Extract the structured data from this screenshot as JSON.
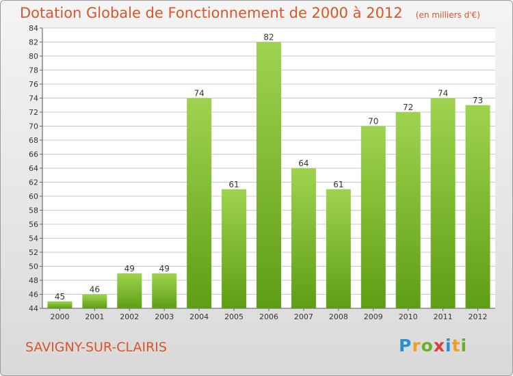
{
  "title": "Dotation Globale de Fonctionnement de 2000 à 2012",
  "unit_note": "(en milliers d'€)",
  "commune": "SAVIGNY-SUR-CLAIRIS",
  "logo": {
    "letters": [
      "P",
      "r",
      "o",
      "x",
      "i",
      "t",
      "i"
    ],
    "colors": [
      "#2a8fd0",
      "#f0a020",
      "#69b02a",
      "#e03a3a",
      "#2a8fd0",
      "#f0a020",
      "#69b02a"
    ]
  },
  "colors": {
    "bar_light": "#9fd34f",
    "bar_dark": "#5e9e14",
    "title": "#d8552a",
    "grid": "#c8c8c8"
  },
  "chart_data": {
    "type": "bar",
    "categories": [
      "2000",
      "2001",
      "2002",
      "2003",
      "2004",
      "2005",
      "2006",
      "2007",
      "2008",
      "2009",
      "2010",
      "2011",
      "2012"
    ],
    "values": [
      45,
      46,
      49,
      49,
      74,
      61,
      82,
      64,
      61,
      70,
      72,
      74,
      73
    ],
    "ylim": [
      44,
      84
    ],
    "yticks": [
      44,
      46,
      48,
      50,
      52,
      54,
      56,
      58,
      60,
      62,
      64,
      66,
      68,
      70,
      72,
      74,
      76,
      78,
      80,
      82,
      84
    ],
    "grid": true,
    "title": "Dotation Globale de Fonctionnement de 2000 à 2012",
    "xlabel": "",
    "ylabel": "(en milliers d'€)"
  }
}
